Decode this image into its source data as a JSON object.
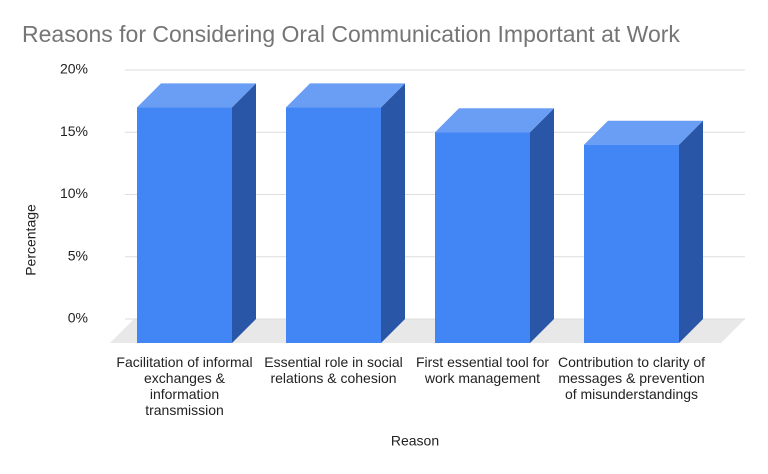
{
  "chart_data": {
    "type": "bar3d",
    "title": "Reasons for Considering Oral Communication Important at Work",
    "x_label": "Reason",
    "y_label": "Percentage",
    "categories": [
      "Facilitation of informal exchanges & information transmission",
      "Essential role in social relations & cohesion",
      "First essential tool for work management",
      "Contribution to clarity of messages & prevention of misunderstandings"
    ],
    "values": [
      17,
      17,
      15,
      14
    ],
    "color": "#4285f4",
    "ylim": [
      0,
      20
    ],
    "yticks": [
      {
        "value": 0,
        "label": "0%"
      },
      {
        "value": 5,
        "label": "5%"
      },
      {
        "value": 10,
        "label": "10%"
      },
      {
        "value": 15,
        "label": "15%"
      },
      {
        "value": 20,
        "label": "20%"
      }
    ],
    "grid": true
  }
}
